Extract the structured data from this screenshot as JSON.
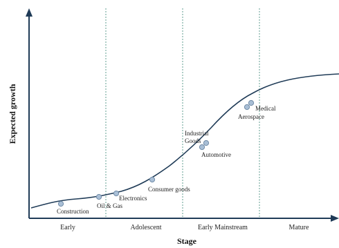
{
  "colors": {
    "axis": "#1f3b57",
    "curve": "#1f3b57",
    "divider": "#5f9e8f",
    "point_fill": "#a9bfd6",
    "point_stroke": "#6f8aa6"
  },
  "axes": {
    "xlabel": "Stage",
    "ylabel": "Expected growth"
  },
  "stages": [
    "Early",
    "Adolescent",
    "Early Mainstream",
    "Mature"
  ],
  "industries": [
    {
      "label": "Construction"
    },
    {
      "label": "Oil & Gas"
    },
    {
      "label": "Electronics"
    },
    {
      "label": "Consumer goods"
    },
    {
      "label": "Industrial",
      "label2": "Goods"
    },
    {
      "label": "Automotive"
    },
    {
      "label": "Aerospace"
    },
    {
      "label": "Medical"
    }
  ]
}
